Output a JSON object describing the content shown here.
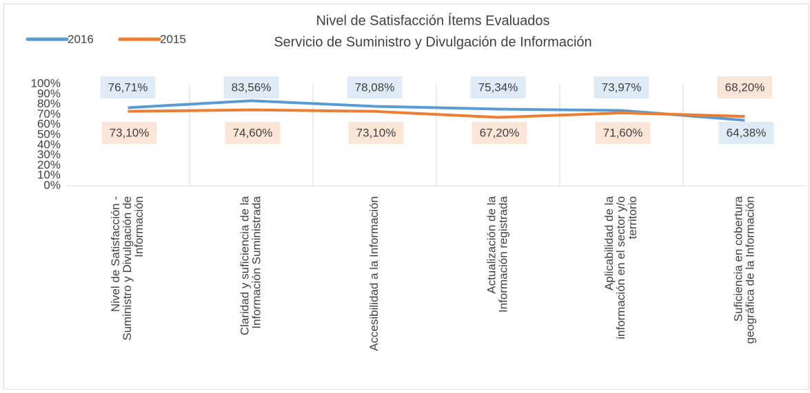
{
  "chart_data": {
    "type": "line",
    "title": [
      "Nivel de Satisfacción Ítems Evaluados",
      "Servicio de Suministro y Divulgación de Información"
    ],
    "categories": [
      [
        "Nivel de Satisfacción -",
        "Suministro y Divulgación de",
        "Información"
      ],
      [
        "Claridad y suficiencia de la",
        "Información Suministrada"
      ],
      [
        "Accesibilidad a la Información"
      ],
      [
        "Actualización de la",
        "Información registrada"
      ],
      [
        "Aplicabilidad de la",
        "información en el sector y/o",
        "territorio"
      ],
      [
        "Suficiencia en cobertura",
        "geográfica de la Información"
      ]
    ],
    "series": [
      {
        "name": "2016",
        "color": "#5b9bd5",
        "label_bg": "#deebf7",
        "values": [
          76.71,
          83.56,
          78.08,
          75.34,
          73.97,
          64.38
        ],
        "value_labels": [
          "76,71%",
          "83,56%",
          "78,08%",
          "75,34%",
          "73,97%",
          "64,38%"
        ]
      },
      {
        "name": "2015",
        "color": "#ed7d31",
        "label_bg": "#fbe5d6",
        "values": [
          73.1,
          74.6,
          73.1,
          67.2,
          71.6,
          68.2
        ],
        "value_labels": [
          "73,10%",
          "74,60%",
          "73,10%",
          "67,20%",
          "71,60%",
          "68,20%"
        ]
      }
    ],
    "ylim": [
      0,
      100
    ],
    "yticks": [
      {
        "value": 0,
        "label": "0%"
      },
      {
        "value": 10,
        "label": "10%"
      },
      {
        "value": 20,
        "label": "20%"
      },
      {
        "value": 30,
        "label": "30%"
      },
      {
        "value": 40,
        "label": "40%"
      },
      {
        "value": 50,
        "label": "50%"
      },
      {
        "value": 60,
        "label": "60%"
      },
      {
        "value": 70,
        "label": "70%"
      },
      {
        "value": 80,
        "label": "80%"
      },
      {
        "value": 90,
        "label": "90%"
      },
      {
        "value": 100,
        "label": "100%"
      }
    ],
    "legend": "top-left"
  }
}
